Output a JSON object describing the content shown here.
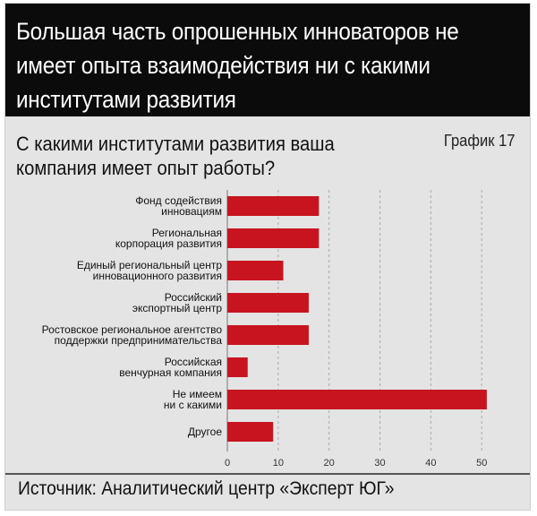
{
  "header": {
    "title": "Большая часть опрошенных инноваторов не имеет опыта взаимодействия ни с какими институтами развития"
  },
  "question": "С какими институтами развития ваша компания имеет опыт работы?",
  "graph_label": "График 17",
  "source": "Источник: Аналитический центр «Эксперт ЮГ»",
  "colors": {
    "bar": "#c8141e",
    "header_bg": "#0b0b0b",
    "panel_bg": "#e4e4e4"
  },
  "chart_data": {
    "type": "bar",
    "orientation": "horizontal",
    "categories": [
      [
        "Фонд содействия",
        "инновациям"
      ],
      [
        "Региональная",
        "корпорация развития"
      ],
      [
        "Единый региональный центр",
        "инновационного развития"
      ],
      [
        "Российский",
        "экспортный центр"
      ],
      [
        "Ростовское региональное агентство",
        "поддержки предпринимательства"
      ],
      [
        "Российская",
        "венчурная компания"
      ],
      [
        "Не имеем",
        "ни с какими"
      ],
      [
        "Другое"
      ]
    ],
    "values": [
      18,
      18,
      11,
      16,
      16,
      4,
      51,
      9
    ],
    "xlim": [
      0,
      57
    ],
    "xticks": [
      0,
      10,
      20,
      30,
      40,
      50
    ],
    "grid": true
  }
}
